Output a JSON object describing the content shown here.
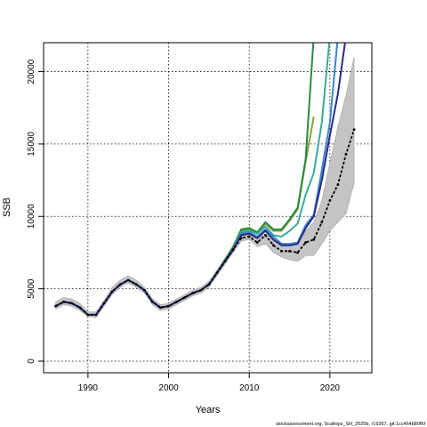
{
  "chart_data": {
    "type": "line",
    "xlabel": "Years",
    "ylabel": "SSB",
    "xlim": [
      1984.5,
      2025.2
    ],
    "ylim": [
      -800,
      22000
    ],
    "x_ticks": [
      1990,
      2000,
      2010,
      2020
    ],
    "y_ticks": [
      0,
      5000,
      10000,
      15000,
      20000
    ],
    "grid": true,
    "grid_style": "dotted",
    "footnote": "stockassessment.org, Scallops_SH_2025b, r19367, git:1cc464b80f6f",
    "colors": {
      "confidence_band": "#c4c4c4",
      "base_line": "#000000",
      "peel_1": "#2b2b8a",
      "peel_2": "#3a86cc",
      "peel_3": "#3aaa9a",
      "peel_4": "#2a8a44",
      "peel_5": "#8aa030"
    },
    "confidence_band": {
      "x": [
        1986,
        1987,
        1988,
        1989,
        1990,
        1991,
        1992,
        1993,
        1994,
        1995,
        1996,
        1997,
        1998,
        1999,
        2000,
        2001,
        2002,
        2003,
        2004,
        2005,
        2006,
        2007,
        2008,
        2009,
        2010,
        2011,
        2012,
        2013,
        2014,
        2015,
        2016,
        2017,
        2018,
        2019,
        2020,
        2021,
        2022,
        2023
      ],
      "lower": [
        3600,
        3900,
        3800,
        3500,
        3100,
        3000,
        3800,
        4600,
        5100,
        5400,
        5100,
        4700,
        3900,
        3500,
        3600,
        3900,
        4200,
        4500,
        4700,
        5100,
        5900,
        6700,
        7500,
        8300,
        8400,
        7900,
        8100,
        7500,
        7200,
        7000,
        6900,
        7300,
        7300,
        8100,
        9000,
        9600,
        10200,
        12300
      ],
      "upper": [
        4100,
        4400,
        4300,
        4000,
        3400,
        3400,
        4200,
        5100,
        5600,
        5900,
        5600,
        5100,
        4300,
        3900,
        4000,
        4300,
        4600,
        4900,
        5100,
        5500,
        6300,
        7100,
        7900,
        8700,
        8800,
        8500,
        8800,
        8300,
        8000,
        8000,
        8200,
        9000,
        9600,
        11100,
        13700,
        16200,
        18400,
        21000
      ]
    },
    "series": [
      {
        "x": [
          1986,
          1987,
          1988,
          1989,
          1990,
          1991,
          1992,
          1993,
          1994,
          1995,
          1996,
          1997,
          1998,
          1999,
          2000,
          2001,
          2002,
          2003,
          2004,
          2005,
          2006,
          2007,
          2008,
          2009,
          2010,
          2011,
          2012,
          2013,
          2014,
          2015,
          2016,
          2017,
          2018,
          2019,
          2020,
          2021,
          2022,
          2023
        ],
        "values": [
          3800,
          4100,
          4000,
          3700,
          3200,
          3200,
          4000,
          4800,
          5300,
          5600,
          5300,
          4900,
          4100,
          3700,
          3800,
          4100,
          4400,
          4700,
          4900,
          5300,
          6100,
          6900,
          7700,
          8500,
          8600,
          8200,
          8700,
          8000,
          7600,
          7600,
          7500,
          8200,
          8400,
          9600,
          11100,
          12200,
          14300,
          16000
        ]
      },
      {
        "x": [
          1986,
          1987,
          1988,
          1989,
          1990,
          1991,
          1992,
          1993,
          1994,
          1995,
          1996,
          1997,
          1998,
          1999,
          2000,
          2001,
          2002,
          2003,
          2004,
          2005,
          2006,
          2007,
          2008,
          2009,
          2010,
          2011,
          2012,
          2013,
          2014,
          2015,
          2016,
          2017,
          2018,
          2019,
          2020,
          2021,
          2022
        ],
        "values": [
          3800,
          4100,
          4000,
          3700,
          3200,
          3200,
          4000,
          4800,
          5300,
          5600,
          5300,
          4900,
          4100,
          3700,
          3800,
          4100,
          4400,
          4700,
          4900,
          5300,
          6100,
          6900,
          7700,
          8700,
          8800,
          8500,
          9000,
          8400,
          8000,
          8000,
          8100,
          9200,
          10000,
          12500,
          15600,
          18500,
          22500
        ]
      },
      {
        "x": [
          1986,
          1987,
          1988,
          1989,
          1990,
          1991,
          1992,
          1993,
          1994,
          1995,
          1996,
          1997,
          1998,
          1999,
          2000,
          2001,
          2002,
          2003,
          2004,
          2005,
          2006,
          2007,
          2008,
          2009,
          2010,
          2011,
          2012,
          2013,
          2014,
          2015,
          2016,
          2017,
          2018,
          2019,
          2020,
          2021
        ],
        "values": [
          3800,
          4100,
          4000,
          3700,
          3200,
          3200,
          4000,
          4800,
          5300,
          5600,
          5300,
          4900,
          4100,
          3700,
          3800,
          4100,
          4400,
          4700,
          4900,
          5300,
          6100,
          6900,
          7700,
          8800,
          8900,
          8600,
          9100,
          8600,
          8100,
          8100,
          8200,
          9400,
          10100,
          13200,
          16500,
          22500
        ]
      },
      {
        "x": [
          1986,
          1987,
          1988,
          1989,
          1990,
          1991,
          1992,
          1993,
          1994,
          1995,
          1996,
          1997,
          1998,
          1999,
          2000,
          2001,
          2002,
          2003,
          2004,
          2005,
          2006,
          2007,
          2008,
          2009,
          2010,
          2011,
          2012,
          2013,
          2014,
          2015,
          2016,
          2017,
          2018,
          2019,
          2020
        ],
        "values": [
          3800,
          4100,
          4000,
          3700,
          3200,
          3200,
          4000,
          4800,
          5300,
          5600,
          5300,
          4900,
          4100,
          3700,
          3800,
          4100,
          4400,
          4700,
          4900,
          5300,
          6100,
          6900,
          7700,
          8900,
          9000,
          8800,
          9300,
          8700,
          8600,
          9000,
          9500,
          11500,
          13000,
          16500,
          22500
        ]
      },
      {
        "x": [
          1986,
          1987,
          1988,
          1989,
          1990,
          1991,
          1992,
          1993,
          1994,
          1995,
          1996,
          1997,
          1998,
          1999,
          2000,
          2001,
          2002,
          2003,
          2004,
          2005,
          2006,
          2007,
          2008,
          2009,
          2010,
          2011,
          2012,
          2013,
          2014,
          2015,
          2016,
          2017,
          2018,
          2019
        ],
        "values": [
          3800,
          4100,
          4000,
          3700,
          3200,
          3200,
          4000,
          4800,
          5300,
          5600,
          5300,
          4900,
          4100,
          3700,
          3800,
          4100,
          4400,
          4700,
          4900,
          5300,
          6100,
          7000,
          7900,
          9100,
          9200,
          8900,
          9600,
          9100,
          9100,
          9800,
          10600,
          14000,
          22500,
          22500
        ]
      },
      {
        "x": [
          1986,
          1987,
          1988,
          1989,
          1990,
          1991,
          1992,
          1993,
          1994,
          1995,
          1996,
          1997,
          1998,
          1999,
          2000,
          2001,
          2002,
          2003,
          2004,
          2005,
          2006,
          2007,
          2008,
          2009,
          2010,
          2011,
          2012,
          2013,
          2014,
          2015,
          2016,
          2017,
          2018
        ],
        "values": [
          3800,
          4100,
          4000,
          3700,
          3200,
          3200,
          4000,
          4800,
          5300,
          5600,
          5300,
          4900,
          4100,
          3700,
          3800,
          4100,
          4400,
          4700,
          4900,
          5300,
          6100,
          7000,
          7900,
          9000,
          9100,
          8800,
          9500,
          9000,
          9000,
          9700,
          10500,
          13800,
          16900
        ]
      }
    ]
  }
}
